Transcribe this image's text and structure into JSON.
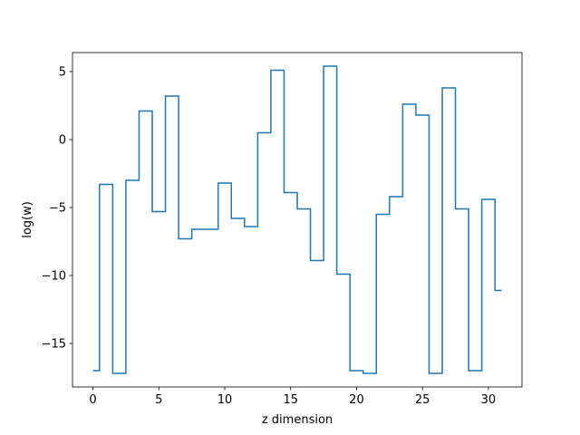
{
  "chart_data": {
    "type": "line",
    "drawstyle": "steps-mid",
    "title": "",
    "xlabel": "z dimension",
    "ylabel": "log(w)",
    "xlim": [
      -1.55,
      32.55
    ],
    "ylim": [
      -18.2,
      6.4
    ],
    "xticks": [
      0,
      5,
      10,
      15,
      20,
      25,
      30
    ],
    "yticks": [
      -15,
      -10,
      -5,
      0,
      5
    ],
    "ytick_labels": [
      "−15",
      "−10",
      "−5",
      "0",
      "5"
    ],
    "grid": false,
    "legend": "none",
    "line_color": "#1f77b4",
    "series": [
      {
        "x": [
          0,
          1,
          2,
          3,
          4,
          5,
          6,
          7,
          8,
          9,
          10,
          11,
          12,
          13,
          14,
          15,
          16,
          17,
          18,
          19,
          20,
          21,
          22,
          23,
          24,
          25,
          26,
          27,
          28,
          29,
          30,
          31
        ],
        "y": [
          -17.0,
          -3.3,
          -17.2,
          -3.0,
          2.1,
          -5.3,
          3.2,
          -7.3,
          -6.6,
          -6.6,
          -3.2,
          -5.8,
          -6.4,
          0.5,
          5.1,
          -3.9,
          -5.1,
          -8.9,
          5.4,
          -9.9,
          -17.0,
          -17.2,
          -5.5,
          -4.2,
          2.6,
          1.8,
          -17.2,
          3.8,
          -5.1,
          -17.0,
          -4.4,
          -11.1
        ]
      }
    ]
  }
}
